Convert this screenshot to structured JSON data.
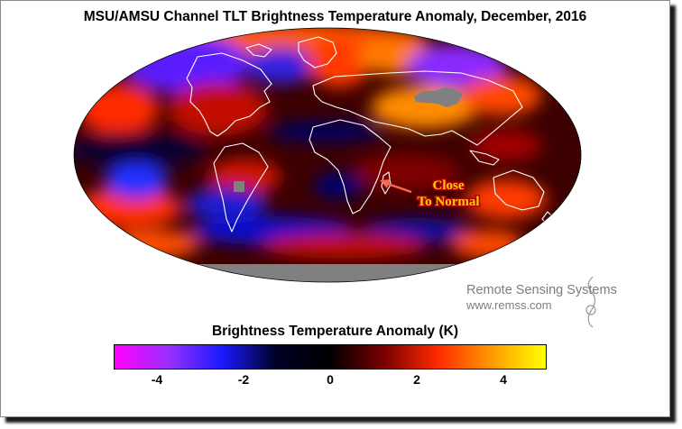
{
  "title": "MSU/AMSU Channel TLT Brightness Temperature Anomaly, December, 2016",
  "annotation": {
    "line1": "Close",
    "line2": "To Normal",
    "color": "#ffd000",
    "arrow_color": "#f26a4f"
  },
  "credit": {
    "name": "Remote Sensing Systems",
    "url": "www.remss.com"
  },
  "colorbar": {
    "label": "Brightness Temperature Anomaly (K)",
    "range": [
      -5,
      5
    ],
    "ticks": [
      {
        "value": -4,
        "label": "-4"
      },
      {
        "value": -2,
        "label": "-2"
      },
      {
        "value": 0,
        "label": "0"
      },
      {
        "value": 2,
        "label": "2"
      },
      {
        "value": 4,
        "label": "4"
      }
    ],
    "colors": [
      "#ff00ff",
      "#9a30ff",
      "#1a1aff",
      "#000026",
      "#000000",
      "#7a0000",
      "#ff2a00",
      "#ff9a00",
      "#ffff00"
    ]
  },
  "map": {
    "projection": "Mollweide",
    "no_data_color": "#808080",
    "coastline_color": "#ffffff"
  }
}
